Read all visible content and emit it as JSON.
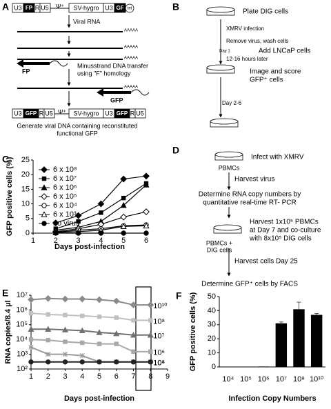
{
  "diagram_A": {
    "label": "A",
    "vector_top": [
      "U3",
      "FP",
      "R",
      "U5",
      "Ψ⁺",
      "SV-hygro",
      "U3",
      "GF",
      "tet"
    ],
    "step": "Viral RNA",
    "transfer": [
      "Minusstrand DNA transfer",
      "using \"F\" homology"
    ],
    "poly_a": [
      "AAAAA",
      "AAAAA",
      "AAAAA",
      "AAAAA"
    ],
    "primers": [
      "FP",
      "GFP"
    ],
    "vector_bottom": [
      "U3",
      "GFP",
      "R",
      "U5",
      "Ψ⁺",
      "SV-hygro",
      "U3",
      "GFP",
      "R",
      "U5"
    ],
    "caption": [
      "Generate viral DNA containing reconstituted",
      "functional GFP"
    ]
  },
  "diagram_B": {
    "label": "B",
    "steps": [
      "Plate DIG cells",
      "XMRV infection",
      "Remove virus, wash cells",
      "Day 1",
      "Add LNCaP cells",
      "12-16 hours later",
      "Image and score",
      "GFP⁺ cells",
      "Day 2-6"
    ]
  },
  "diagram_D": {
    "label": "D",
    "steps": [
      "Infect with XMRV",
      "PBMCs",
      "Harvest virus",
      "Determine RNA copy numbers by",
      "quantitative real-time RT- PCR",
      "Harvest 1x10⁵ PBMCs",
      "at Day 7 and co-culture",
      "with 8x10⁵ DIG cells",
      "PBMCs +",
      "DIG cells",
      "Harvest cells Day 25",
      "Determine GFP⁺ cells by FACS"
    ]
  },
  "chart_data": [
    {
      "type": "line",
      "label": "C",
      "x_label": "Days post-infection",
      "y_label": "GFP positive cells (%)",
      "x": [
        2,
        3,
        4,
        5,
        6
      ],
      "xlim": [
        1,
        6
      ],
      "xticks": [
        1,
        2,
        3,
        4,
        5,
        6
      ],
      "ylim": [
        0,
        25
      ],
      "yticks": [
        0,
        5,
        10,
        15,
        20,
        25
      ],
      "series": [
        {
          "name": "6 x 10⁸",
          "color": "#000000",
          "marker": "diamond",
          "values": [
            3.5,
            6,
            10,
            18.5,
            19.5
          ]
        },
        {
          "name": "6 x 10⁷",
          "color": "#000000",
          "marker": "square",
          "values": [
            1.5,
            4,
            7,
            12,
            17
          ]
        },
        {
          "name": "6 x 10⁶",
          "color": "#000000",
          "marker": "triangle",
          "values": [
            1,
            2,
            4,
            9.5,
            16.5
          ]
        },
        {
          "name": "6 x 10⁵",
          "color": "#000000",
          "marker": "open-diamond",
          "values": [
            0.5,
            1.5,
            3,
            5.5,
            7.3
          ]
        },
        {
          "name": "6 x 10⁴",
          "color": "#000000",
          "marker": "open-circle",
          "values": [
            0.3,
            1,
            1.5,
            2.5,
            2.8
          ]
        },
        {
          "name": "6 x 10³",
          "color": "#000000",
          "marker": "open-triangle",
          "values": [
            0.2,
            0.5,
            1,
            2.3,
            2.5
          ]
        },
        {
          "name": "no virus",
          "color": "#000000",
          "marker": "circle",
          "values": [
            0,
            0,
            0,
            0,
            0
          ]
        }
      ]
    },
    {
      "type": "line",
      "label": "E",
      "x_label": "Days post-infection",
      "y_label": "RNA copies/8.4 µl",
      "x": [
        1,
        2,
        3,
        4,
        5,
        6,
        7,
        8
      ],
      "xlim": [
        1,
        9
      ],
      "xticks": [
        1,
        2,
        3,
        4,
        5,
        6,
        7,
        8,
        9
      ],
      "log_scale": true,
      "ylim": [
        100,
        10000000
      ],
      "yticks": [
        {
          "value": 100,
          "label": "10²"
        },
        {
          "value": 1000,
          "label": "10³"
        },
        {
          "value": 10000,
          "label": "10⁴"
        },
        {
          "value": 100000,
          "label": "10⁵"
        },
        {
          "value": 1000000,
          "label": "10⁶"
        },
        {
          "value": 10000000,
          "label": "10⁷"
        }
      ],
      "series": [
        {
          "name": "10¹⁰",
          "color": "#8a8a8a",
          "marker": "diamond",
          "values": [
            5000000,
            6000000,
            5500000,
            5500000,
            5000000,
            4000000,
            2200000,
            2200000
          ]
        },
        {
          "name": "10⁸",
          "color": "#c0c0c0",
          "marker": "square",
          "values": [
            600000,
            500000,
            450000,
            400000,
            350000,
            300000,
            200000,
            200000
          ]
        },
        {
          "name": "10⁷",
          "color": "#707070",
          "marker": "triangle",
          "values": [
            50000,
            50000,
            45000,
            40000,
            30000,
            25000,
            20000,
            20000
          ]
        },
        {
          "name": "10⁶",
          "color": "#a8a8a8",
          "marker": "square",
          "values": [
            10000,
            9000,
            7000,
            6000,
            5000,
            5000,
            1500,
            1500
          ]
        },
        {
          "name": "10⁵",
          "color": "#9a9a9a",
          "marker": "asterisk",
          "values": [
            3000,
            1000,
            1000,
            800,
            300,
            300,
            300,
            300
          ]
        },
        {
          "name": "10⁴",
          "color": "#222222",
          "marker": "circle",
          "values": [
            300,
            300,
            300,
            300,
            300,
            300,
            300,
            300
          ]
        }
      ]
    },
    {
      "type": "bar",
      "label": "F",
      "x_label": "Infection Copy Numbers",
      "y_label": "GFP positive cells (%)",
      "categories": [
        "10⁴",
        "10⁵",
        "10⁶",
        "10⁷",
        "10⁸",
        "10¹⁰"
      ],
      "values": [
        0,
        0,
        0.3,
        31,
        41,
        37
      ],
      "errors": [
        0,
        0,
        0,
        1,
        5,
        1
      ],
      "color": "#000000",
      "ylim": [
        0,
        50
      ],
      "yticks": [
        0,
        10,
        20,
        30,
        40,
        50
      ]
    }
  ]
}
